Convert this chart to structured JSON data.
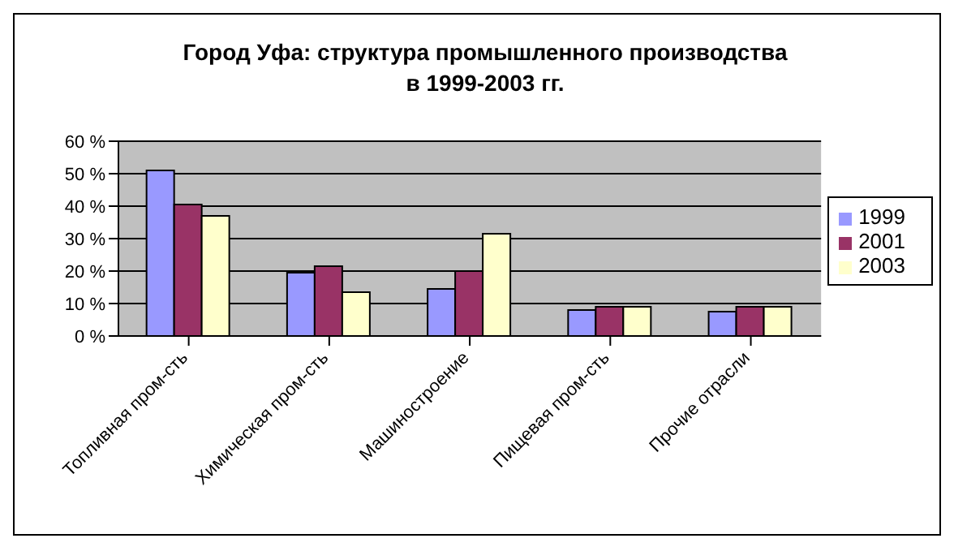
{
  "chart_data": {
    "type": "bar",
    "title": "Город Уфа: структура промышленного производства в 1999-2003 гг.",
    "categories": [
      "Топливная пром-сть",
      "Химическая пром-сть",
      "Машиностроение",
      "Пищевая пром-сть",
      "Прочие отрасли"
    ],
    "series": [
      {
        "name": "1999",
        "color": "#9999ff",
        "values": [
          51,
          19.5,
          14.5,
          8,
          7.5
        ]
      },
      {
        "name": "2001",
        "color": "#993366",
        "values": [
          40.5,
          21.5,
          20,
          9,
          9
        ]
      },
      {
        "name": "2003",
        "color": "#ffffcc",
        "values": [
          37,
          13.5,
          31.5,
          9,
          9
        ]
      }
    ],
    "ylim": [
      0,
      60
    ],
    "yticks": [
      {
        "value": 0,
        "label": "0 %"
      },
      {
        "value": 10,
        "label": "10 %"
      },
      {
        "value": 20,
        "label": "20 %"
      },
      {
        "value": 30,
        "label": "30 %"
      },
      {
        "value": 40,
        "label": "40 %"
      },
      {
        "value": 50,
        "label": "50 %"
      },
      {
        "value": 60,
        "label": "60 %"
      }
    ],
    "grid": "y",
    "legend": "right"
  }
}
